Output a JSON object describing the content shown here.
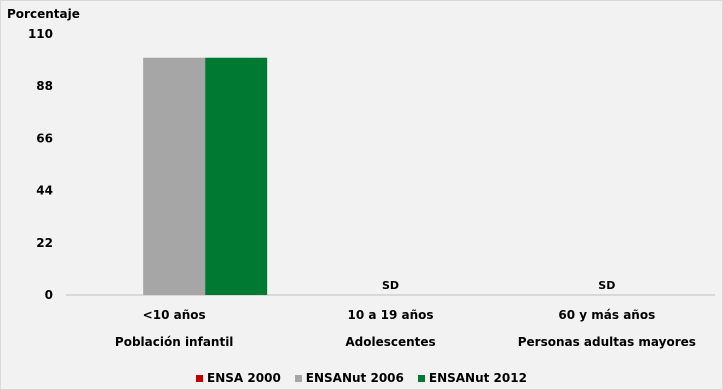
{
  "chart_data": {
    "type": "bar",
    "ylabel": "Porcentaje",
    "ylim": [
      0,
      110
    ],
    "yticks": [
      0,
      22,
      44,
      66,
      88,
      110
    ],
    "categories": [
      "<10 años",
      "10 a 19 años",
      "60 y más años"
    ],
    "category_groups": [
      "Población infantil",
      "Adolescentes",
      "Personas adultas mayores"
    ],
    "series": [
      {
        "name": "ENSA 2000",
        "color": "#c00000",
        "values": [
          null,
          null,
          null
        ]
      },
      {
        "name": "ENSANut 2006",
        "color": "#a6a6a6",
        "values": [
          100,
          null,
          null
        ]
      },
      {
        "name": "ENSANut 2012",
        "color": "#007a33",
        "values": [
          100,
          null,
          null
        ]
      }
    ],
    "annotations": [
      {
        "category": "10 a 19 años",
        "text": "SD"
      },
      {
        "category": "60 y más años",
        "text": "SD"
      }
    ],
    "grid": false,
    "legend_position": "bottom"
  }
}
